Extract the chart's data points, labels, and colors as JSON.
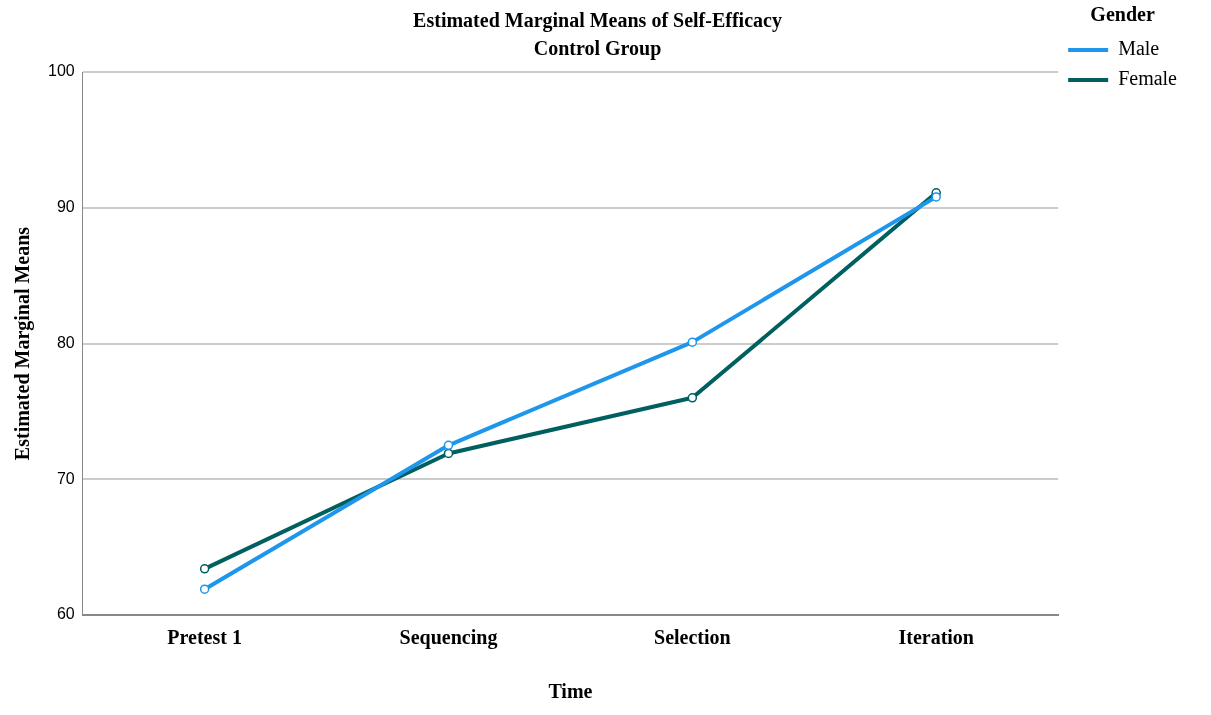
{
  "chart_data": {
    "type": "line",
    "title": "Estimated Marginal Means of Self-Efficacy",
    "subtitle": "Control Group",
    "xlabel": "Time",
    "ylabel": "Estimated Marginal Means",
    "legend_title": "Gender",
    "categories": [
      "Pretest 1",
      "Sequencing",
      "Selection",
      "Iteration"
    ],
    "series": [
      {
        "name": "Male",
        "color": "#1e96eb",
        "values": [
          61.9,
          72.5,
          80.1,
          90.8
        ]
      },
      {
        "name": "Female",
        "color": "#005f5f",
        "values": [
          63.4,
          71.9,
          76.0,
          91.1
        ]
      }
    ],
    "ylim": [
      60,
      100
    ],
    "yticks": [
      60,
      70,
      80,
      90,
      100
    ],
    "grid": "y",
    "legend": "top right",
    "marker": "circle",
    "line_style": "solid"
  }
}
